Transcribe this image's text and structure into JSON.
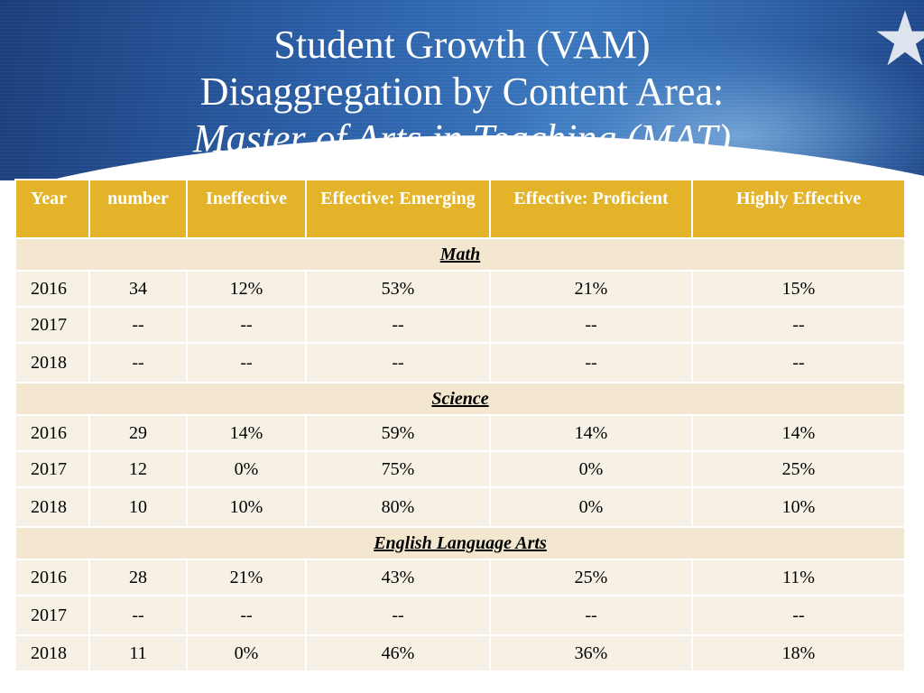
{
  "slide": {
    "title_line1": "Student Growth (VAM)",
    "title_line2": "Disaggregation by Content Area:",
    "title_line3": "Master of Arts in Teaching (MAT)"
  },
  "table": {
    "headers": [
      "Year",
      "number",
      "Ineffective",
      "Effective: Emerging",
      "Effective: Proficient",
      "Highly Effective"
    ],
    "sections": [
      {
        "name": "Math",
        "rows": [
          [
            "2016",
            "34",
            "12%",
            "53%",
            "21%",
            "15%"
          ],
          [
            "2017",
            "--",
            "--",
            "--",
            "--",
            "--"
          ],
          [
            "2018",
            "--",
            "--",
            "--",
            "--",
            "--"
          ]
        ]
      },
      {
        "name": "Science",
        "rows": [
          [
            "2016",
            "29",
            "14%",
            "59%",
            "14%",
            "14%"
          ],
          [
            "2017",
            "12",
            "0%",
            "75%",
            "0%",
            "25%"
          ],
          [
            "2018",
            "10",
            "10%",
            "80%",
            "0%",
            "10%"
          ]
        ]
      },
      {
        "name": "English Language Arts",
        "rows": [
          [
            "2016",
            "28",
            "21%",
            "43%",
            "25%",
            "11%"
          ],
          [
            "2017",
            "--",
            "--",
            "--",
            "--",
            "--"
          ],
          [
            "2018",
            "11",
            "0%",
            "46%",
            "36%",
            "18%"
          ]
        ]
      }
    ]
  }
}
